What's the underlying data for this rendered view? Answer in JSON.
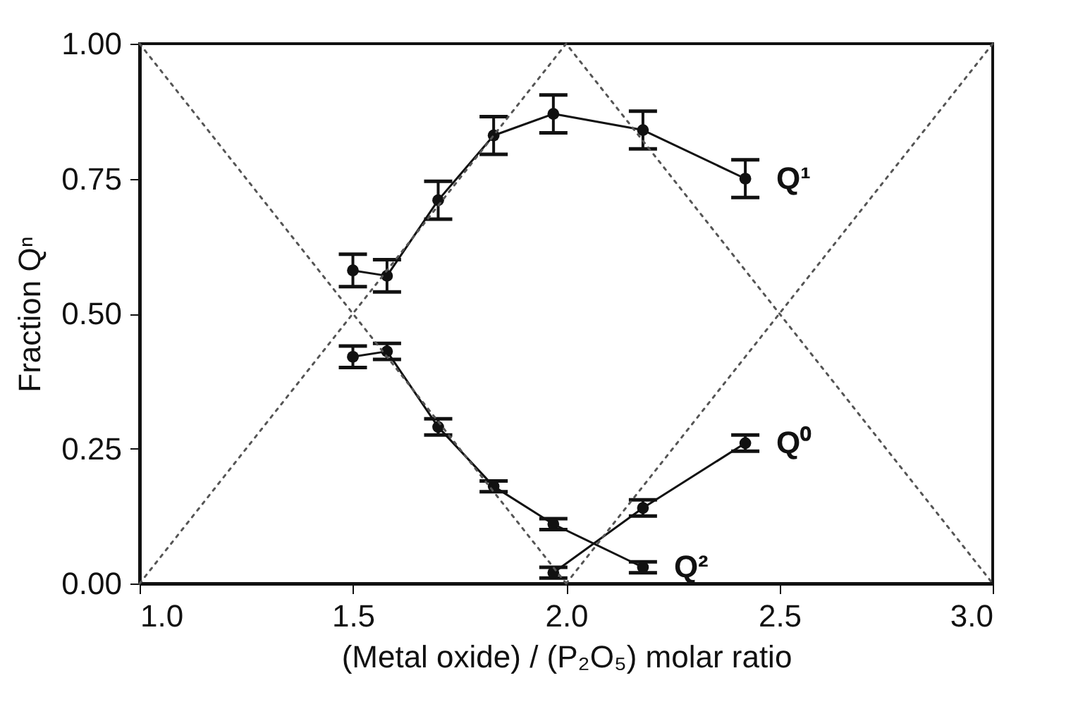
{
  "chart_data": {
    "type": "line",
    "xlabel": "(Metal oxide) / (P₂O₅) molar ratio",
    "ylabel": "Fraction Qⁿ",
    "xlim": [
      1.0,
      3.0
    ],
    "ylim": [
      0,
      1
    ],
    "xticks": [
      {
        "value": 1,
        "label": "1.0"
      },
      {
        "value": 1.5,
        "label": "1.5"
      },
      {
        "value": 2,
        "label": "2.0"
      },
      {
        "value": 2.5,
        "label": "2.5"
      },
      {
        "value": 3,
        "label": "3.0"
      }
    ],
    "yticks": [
      {
        "value": 0,
        "label": "0.00"
      },
      {
        "value": 0.25,
        "label": "0.25"
      },
      {
        "value": 0.5,
        "label": "0.50"
      },
      {
        "value": 0.75,
        "label": "0.75"
      },
      {
        "value": 1,
        "label": "1.00"
      }
    ],
    "grid": false,
    "series": [
      {
        "name": "Q¹",
        "color": "#111111",
        "marker": "circle",
        "line_style": "solid",
        "x": [
          1.5,
          1.58,
          1.7,
          1.83,
          1.97,
          2.18,
          2.42
        ],
        "values": [
          0.58,
          0.57,
          0.71,
          0.83,
          0.87,
          0.84,
          0.75
        ],
        "errors": [
          0.03,
          0.03,
          0.035,
          0.035,
          0.035,
          0.035,
          0.035
        ]
      },
      {
        "name": "Q²",
        "color": "#111111",
        "marker": "circle",
        "line_style": "solid",
        "x": [
          1.5,
          1.58,
          1.7,
          1.83,
          1.97,
          2.18
        ],
        "values": [
          0.42,
          0.43,
          0.29,
          0.18,
          0.11,
          0.03
        ],
        "errors": [
          0.02,
          0.015,
          0.015,
          0.01,
          0.01,
          0.01
        ]
      },
      {
        "name": "Q⁰",
        "color": "#111111",
        "marker": "circle",
        "line_style": "solid",
        "x": [
          1.97,
          2.18,
          2.42
        ],
        "values": [
          0.02,
          0.14,
          0.26
        ],
        "errors": [
          0.01,
          0.015,
          0.015
        ]
      },
      {
        "color": "#555555",
        "marker": "none",
        "line_style": "dotted",
        "x": [
          1,
          2,
          3
        ],
        "values": [
          0,
          1,
          0
        ]
      },
      {
        "color": "#555555",
        "marker": "none",
        "line_style": "dotted",
        "x": [
          1,
          2
        ],
        "values": [
          1,
          0
        ]
      },
      {
        "color": "#555555",
        "marker": "none",
        "line_style": "dotted",
        "x": [
          2,
          3
        ],
        "values": [
          0,
          1
        ]
      }
    ]
  }
}
